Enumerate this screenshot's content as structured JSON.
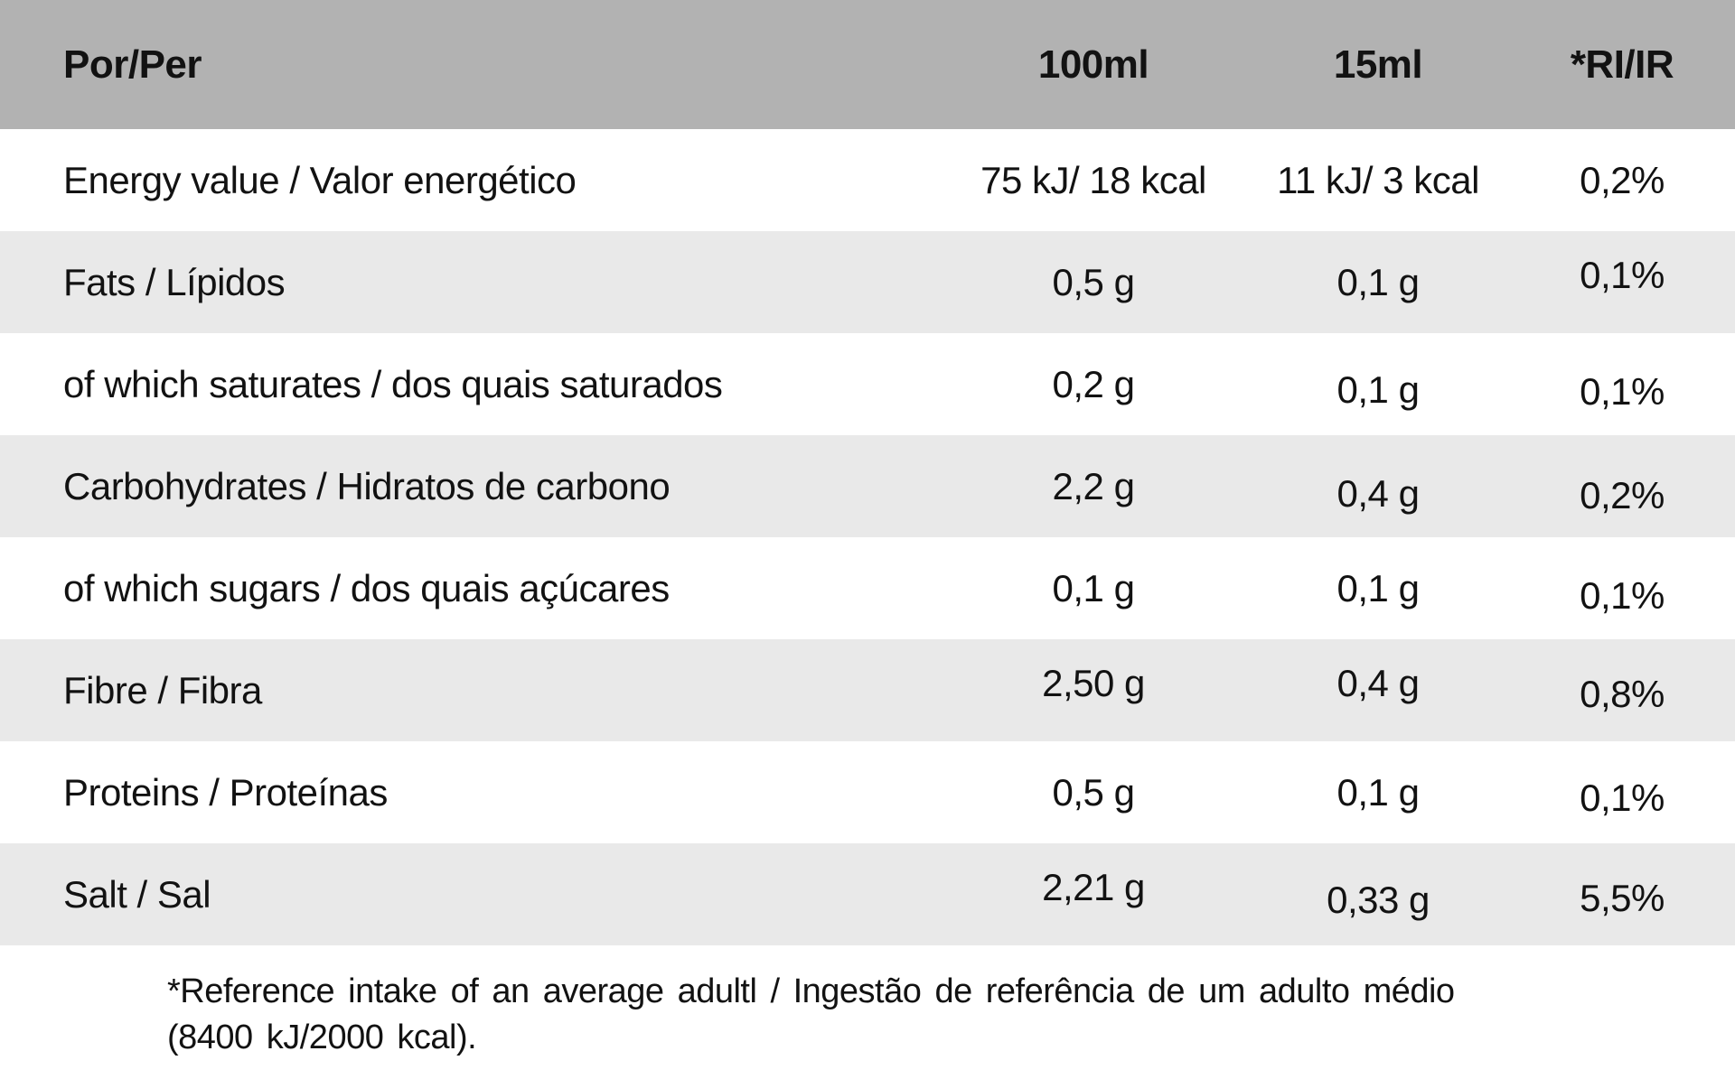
{
  "table": {
    "header": {
      "col1": "Por/Per",
      "col2": "100ml",
      "col3": "15ml",
      "col4": "*RI/IR"
    },
    "rows": [
      {
        "label": "Energy value / Valor energético",
        "per100ml": "75 kJ/ 18 kcal",
        "per15ml": "11 kJ/ 3 kcal",
        "ri": "0,2%"
      },
      {
        "label": "Fats / Lípidos",
        "per100ml": "0,5 g",
        "per15ml": "0,1 g",
        "ri": "0,1%"
      },
      {
        "label": "of which saturates / dos quais saturados",
        "per100ml": "0,2 g",
        "per15ml": "0,1 g",
        "ri": "0,1%"
      },
      {
        "label": "Carbohydrates / Hidratos de carbono",
        "per100ml": "2,2 g",
        "per15ml": "0,4 g",
        "ri": "0,2%"
      },
      {
        "label": "of which sugars / dos quais açúcares",
        "per100ml": "0,1 g",
        "per15ml": "0,1 g",
        "ri": "0,1%"
      },
      {
        "label": "Fibre / Fibra",
        "per100ml": "2,50 g",
        "per15ml": "0,4 g",
        "ri": "0,8%"
      },
      {
        "label": "Proteins / Proteínas",
        "per100ml": "0,5 g",
        "per15ml": "0,1 g",
        "ri": "0,1%"
      },
      {
        "label": "Salt / Sal",
        "per100ml": "2,21 g",
        "per15ml": "0,33 g",
        "ri": "5,5%"
      }
    ],
    "footnote": {
      "line1": "*Reference intake of an average adultl / Ingestão de referência de um adulto médio",
      "line2": "(8400 kJ/2000 kcal)."
    },
    "colors": {
      "header_bg": "#b2b2b2",
      "stripe_bg": "#e9e9e9",
      "row_bg": "#ffffff",
      "text": "#121212"
    }
  }
}
